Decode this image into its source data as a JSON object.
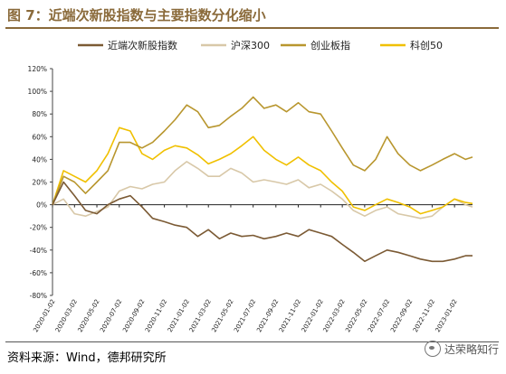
{
  "title": "图 7：近端次新股指数与主要指数分化缩小",
  "source": "资料来源：Wind，德邦研究所",
  "watermark": "达荣略知行",
  "chart_data": {
    "type": "line",
    "ylim": [
      -80,
      120
    ],
    "yticks": [
      "120%",
      "100%",
      "80%",
      "60%",
      "40%",
      "20%",
      "0%",
      "-20%",
      "-40%",
      "-60%",
      "-80%"
    ],
    "xticks": [
      "2020-01-02",
      "2020-03-02",
      "2020-05-02",
      "2020-07-02",
      "2020-09-02",
      "2020-11-02",
      "2021-01-02",
      "2021-03-02",
      "2021-05-02",
      "2021-07-02",
      "2021-09-02",
      "2021-11-02",
      "2022-01-02",
      "2022-03-02",
      "2022-05-02",
      "2022-07-02",
      "2022-09-02",
      "2022-11-02",
      "2023-01-02"
    ],
    "x": [
      "2020-01-02",
      "2020-02-01",
      "2020-03-02",
      "2020-04-01",
      "2020-05-02",
      "2020-06-01",
      "2020-07-02",
      "2020-08-01",
      "2020-09-02",
      "2020-10-01",
      "2020-11-02",
      "2020-12-01",
      "2021-01-02",
      "2021-02-01",
      "2021-03-02",
      "2021-04-01",
      "2021-05-02",
      "2021-06-01",
      "2021-07-02",
      "2021-08-01",
      "2021-09-02",
      "2021-10-01",
      "2021-11-02",
      "2021-12-01",
      "2022-01-02",
      "2022-02-01",
      "2022-03-02",
      "2022-04-01",
      "2022-05-02",
      "2022-06-01",
      "2022-07-02",
      "2022-08-01",
      "2022-09-02",
      "2022-10-01",
      "2022-11-02",
      "2022-12-01",
      "2023-01-02",
      "2023-02-01",
      "2023-02-20"
    ],
    "series": [
      {
        "name": "近端次新股指数",
        "color": "#7b5a34",
        "values": [
          0,
          20,
          8,
          -5,
          -8,
          0,
          5,
          8,
          -2,
          -12,
          -15,
          -18,
          -20,
          -28,
          -22,
          -30,
          -25,
          -28,
          -27,
          -30,
          -28,
          -25,
          -28,
          -22,
          -25,
          -28,
          -35,
          -42,
          -50,
          -45,
          -40,
          -42,
          -45,
          -48,
          -50,
          -50,
          -48,
          -45,
          -45
        ]
      },
      {
        "name": "沪深300",
        "color": "#d8c8a8",
        "values": [
          0,
          5,
          -8,
          -10,
          -6,
          -2,
          12,
          16,
          14,
          18,
          20,
          30,
          38,
          32,
          25,
          25,
          32,
          28,
          20,
          22,
          20,
          18,
          22,
          15,
          18,
          12,
          5,
          -5,
          -10,
          -5,
          -2,
          -8,
          -10,
          -12,
          -10,
          -2,
          5,
          0,
          -2
        ]
      },
      {
        "name": "创业板指",
        "color": "#b8962e",
        "values": [
          0,
          25,
          20,
          10,
          20,
          30,
          55,
          55,
          50,
          55,
          65,
          75,
          88,
          82,
          68,
          70,
          78,
          85,
          95,
          85,
          88,
          82,
          90,
          82,
          80,
          65,
          50,
          35,
          30,
          40,
          60,
          45,
          35,
          30,
          35,
          40,
          45,
          40,
          42
        ]
      },
      {
        "name": "科创50",
        "color": "#f0c000",
        "values": [
          0,
          30,
          25,
          20,
          30,
          45,
          68,
          65,
          45,
          40,
          48,
          52,
          50,
          44,
          36,
          40,
          45,
          52,
          60,
          48,
          40,
          35,
          42,
          35,
          30,
          20,
          12,
          -2,
          -5,
          0,
          5,
          2,
          -2,
          -8,
          -5,
          -2,
          5,
          2,
          1
        ]
      }
    ]
  }
}
